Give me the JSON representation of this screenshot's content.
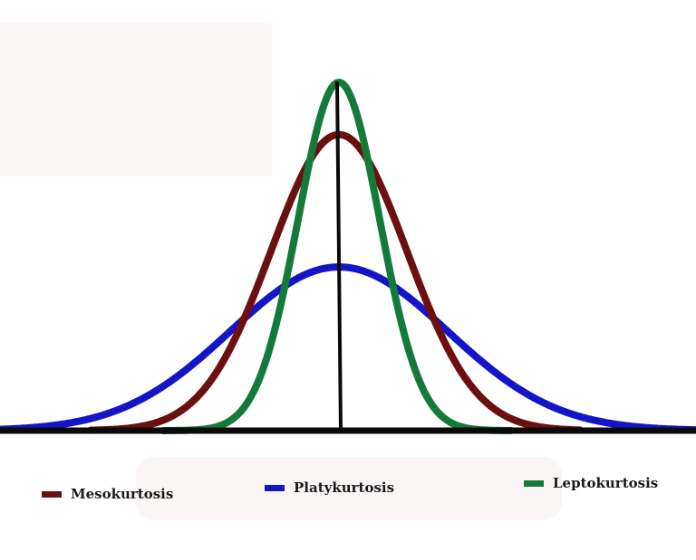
{
  "legend": {
    "mesokurtosis": "Mesokurtosis",
    "platykurtosis": "Platykurtosis",
    "leptokurtosis": "Leptokurtosis"
  },
  "colors": {
    "mesokurtosis": "#6b0f0f",
    "platykurtosis": "#1515c8",
    "leptokurtosis": "#137a3a",
    "axis": "#0a0a0a"
  },
  "curves": [
    {
      "key": "platykurtosis",
      "peak": 0.47,
      "width": 1.6
    },
    {
      "key": "mesokurtosis",
      "peak": 0.85,
      "width": 1.0
    },
    {
      "key": "leptokurtosis",
      "peak": 1.0,
      "width": 0.6
    }
  ]
}
